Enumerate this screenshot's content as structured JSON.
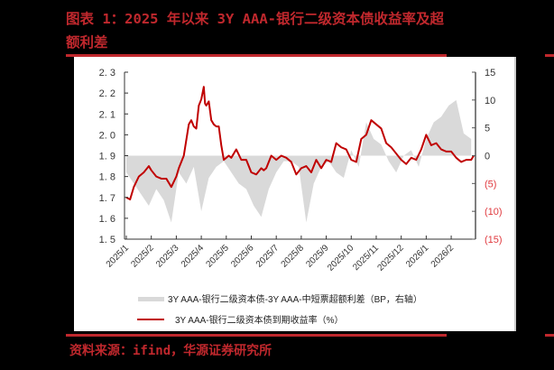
{
  "figure": {
    "title": "图表 1：2025 年以来 3Y AAA-银行二级资本债收益率及超额利差",
    "source": "资料来源：ifind，华源证券研究所"
  },
  "chart_data": {
    "type": "line",
    "title": "图表 1：2025 年以来 3Y AAA-银行二级资本债收益率及超额利差",
    "categories": [
      "2025/1",
      "2025/2",
      "2025/3",
      "2025/4",
      "2025/5",
      "2025/6",
      "2025/7",
      "2025/8",
      "2025/9",
      "2025/10",
      "2025/11",
      "2025/12",
      "2026/1",
      "2026/2"
    ],
    "left_axis": {
      "label": "%",
      "ticks": [
        "1.5",
        "1.6",
        "1.7",
        "1.8",
        "1.9",
        "2.0",
        "2.1",
        "2.2",
        "2.3"
      ],
      "ylim": [
        1.5,
        2.3
      ]
    },
    "right_axis": {
      "label": "BP",
      "ticks": [
        "15",
        "10",
        "5",
        "0",
        "(5)",
        "(10)",
        "(15)"
      ],
      "ylim": [
        -15,
        15
      ]
    },
    "series": [
      {
        "name": "3Y AAA-银行二级资本债到期收益率（%）",
        "type": "line",
        "axis": "left",
        "color": "#c00000",
        "x": [
          0,
          0.15,
          0.3,
          0.5,
          0.7,
          0.9,
          1.0,
          1.2,
          1.4,
          1.6,
          1.8,
          2.0,
          2.1,
          2.3,
          2.5,
          2.6,
          2.7,
          2.8,
          2.9,
          3.0,
          3.1,
          3.15,
          3.2,
          3.3,
          3.4,
          3.5,
          3.6,
          3.7,
          3.8,
          3.9,
          4.0,
          4.1,
          4.2,
          4.4,
          4.6,
          4.8,
          5.0,
          5.2,
          5.4,
          5.5,
          5.6,
          5.8,
          6.0,
          6.2,
          6.4,
          6.6,
          6.8,
          7.0,
          7.2,
          7.4,
          7.6,
          7.8,
          8.0,
          8.2,
          8.4,
          8.6,
          8.8,
          9.0,
          9.2,
          9.4,
          9.6,
          9.8,
          10.0,
          10.2,
          10.4,
          10.6,
          10.8,
          11.0,
          11.2,
          11.4,
          11.6,
          11.8,
          12.0,
          12.2,
          12.4,
          12.6,
          12.8,
          13.0,
          13.2,
          13.4,
          13.6,
          13.8,
          13.9
        ],
        "values": [
          1.7,
          1.69,
          1.75,
          1.8,
          1.82,
          1.85,
          1.83,
          1.8,
          1.79,
          1.79,
          1.75,
          1.8,
          1.84,
          1.9,
          2.05,
          2.07,
          2.04,
          2.03,
          2.14,
          2.17,
          2.23,
          2.15,
          2.14,
          2.16,
          2.07,
          2.05,
          2.04,
          2.04,
          1.95,
          1.88,
          1.89,
          1.9,
          1.89,
          1.93,
          1.88,
          1.88,
          1.82,
          1.81,
          1.84,
          1.83,
          1.84,
          1.9,
          1.88,
          1.9,
          1.89,
          1.87,
          1.81,
          1.84,
          1.85,
          1.82,
          1.88,
          1.84,
          1.88,
          1.87,
          1.96,
          1.94,
          1.93,
          1.88,
          1.87,
          1.98,
          2.0,
          2.07,
          2.05,
          2.03,
          1.96,
          1.94,
          1.91,
          1.88,
          1.86,
          1.89,
          1.88,
          1.93,
          2.0,
          1.95,
          1.96,
          1.93,
          1.92,
          1.92,
          1.89,
          1.87,
          1.88,
          1.88,
          1.9
        ],
        "note": "approximate values read from chart; peak ~2.23 in mid-March 2025, low ~1.69 early Jan 2025"
      },
      {
        "name": "3Y AAA-银行二级资本债-3Y AAA-中短票超额利差（BP，右轴）",
        "type": "area",
        "axis": "right",
        "color": "#d9d9d9",
        "x": [
          0,
          0.3,
          0.6,
          0.9,
          1.2,
          1.5,
          1.8,
          2.1,
          2.4,
          2.7,
          3.0,
          3.3,
          3.6,
          3.9,
          4.2,
          4.5,
          4.8,
          5.1,
          5.4,
          5.7,
          6.0,
          6.3,
          6.6,
          6.9,
          7.2,
          7.5,
          7.8,
          8.1,
          8.4,
          8.7,
          9.0,
          9.3,
          9.6,
          9.9,
          10.2,
          10.5,
          10.8,
          11.1,
          11.4,
          11.7,
          12.0,
          12.3,
          12.6,
          12.9,
          13.2,
          13.5,
          13.8
        ],
        "values": [
          -3,
          -5,
          -7,
          -9,
          -6,
          -8,
          -12,
          -3,
          -5,
          -2,
          -10,
          -4,
          -2,
          -1,
          -3,
          -5,
          -6,
          -9,
          -11,
          -6,
          -3,
          -1,
          -1,
          -2,
          -12,
          -5,
          -2,
          -1,
          -3,
          -4,
          1,
          -2,
          6,
          3,
          2,
          -1,
          -3,
          0,
          1,
          -2,
          3,
          6,
          7,
          9,
          10,
          4,
          3
        ],
        "note": "approximate; spread mostly negative Jan–Sep 2025 (min ≈ -12 BP), mostly positive from Oct 2025 (max ≈ 10 BP)"
      }
    ],
    "legend": [
      {
        "label": "3Y AAA-银行二级资本债-3Y AAA-中短票超额利差（BP，右轴）",
        "style": "gray-area"
      },
      {
        "label": "3Y AAA-银行二级资本债到期收益率（%）",
        "style": "red-line"
      }
    ],
    "legend_position": "bottom",
    "grid": false
  }
}
